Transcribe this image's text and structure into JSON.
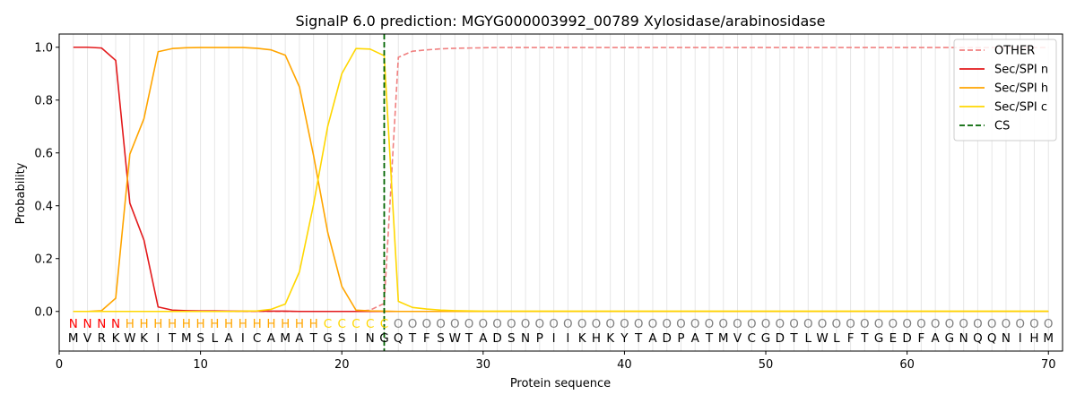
{
  "chart_data": {
    "type": "line",
    "title": "SignalP 6.0 prediction: MGYG000003992_00789 Xylosidase/arabinosidase",
    "xlabel": "Protein sequence",
    "ylabel": "Probability",
    "xlim": [
      0,
      71
    ],
    "ylim": [
      -0.15,
      1.05
    ],
    "xticks": [
      0,
      10,
      20,
      30,
      40,
      50,
      60,
      70
    ],
    "yticks": [
      0.0,
      0.2,
      0.4,
      0.6,
      0.8,
      1.0
    ],
    "xtick_labels": [
      "0",
      "10",
      "20",
      "30",
      "40",
      "50",
      "60",
      "70"
    ],
    "ytick_labels": [
      "0.0",
      "0.2",
      "0.4",
      "0.6",
      "0.8",
      "1.0"
    ],
    "legend_position": "top-right",
    "cleavage_site": 23,
    "sequence": [
      "M",
      "V",
      "R",
      "K",
      "W",
      "K",
      "I",
      "T",
      "M",
      "S",
      "L",
      "A",
      "I",
      "C",
      "A",
      "M",
      "A",
      "T",
      "G",
      "S",
      "I",
      "N",
      "G",
      "Q",
      "T",
      "F",
      "S",
      "W",
      "T",
      "A",
      "D",
      "S",
      "N",
      "P",
      "I",
      "I",
      "K",
      "H",
      "K",
      "Y",
      "T",
      "A",
      "D",
      "P",
      "A",
      "T",
      "M",
      "V",
      "C",
      "G",
      "D",
      "T",
      "L",
      "W",
      "L",
      "F",
      "T",
      "G",
      "E",
      "D",
      "F",
      "A",
      "G",
      "N",
      "Q",
      "Q",
      "N",
      "I",
      "H",
      "M"
    ],
    "region_labels": [
      "N",
      "N",
      "N",
      "N",
      "H",
      "H",
      "H",
      "H",
      "H",
      "H",
      "H",
      "H",
      "H",
      "H",
      "H",
      "H",
      "H",
      "H",
      "C",
      "C",
      "C",
      "C",
      "C",
      "O",
      "O",
      "O",
      "O",
      "O",
      "O",
      "O",
      "O",
      "O",
      "O",
      "O",
      "O",
      "O",
      "O",
      "O",
      "O",
      "O",
      "O",
      "O",
      "O",
      "O",
      "O",
      "O",
      "O",
      "O",
      "O",
      "O",
      "O",
      "O",
      "O",
      "O",
      "O",
      "O",
      "O",
      "O",
      "O",
      "O",
      "O",
      "O",
      "O",
      "O",
      "O",
      "O",
      "O",
      "O",
      "O",
      "O"
    ],
    "region_colors": {
      "N": "#ff0000",
      "H": "#ffa500",
      "C": "#ffd700",
      "O": "#808080"
    },
    "series": [
      {
        "name": "OTHER",
        "color": "#f08080",
        "style": "dashed",
        "x_start": 1,
        "values": [
          0.0,
          0.0,
          0.0,
          0.0,
          0.0,
          0.0,
          0.0,
          0.0,
          0.0,
          0.0,
          0.0,
          0.0,
          0.0,
          0.0,
          0.0,
          0.0,
          0.0,
          0.0,
          0.0,
          0.0,
          0.0,
          0.005,
          0.03,
          0.962,
          0.985,
          0.99,
          0.994,
          0.996,
          0.997,
          0.998,
          0.999,
          0.999,
          0.999,
          0.999,
          0.999,
          0.999,
          0.999,
          0.999,
          0.999,
          0.999,
          0.999,
          0.999,
          0.999,
          0.999,
          0.999,
          0.999,
          0.999,
          0.999,
          0.999,
          0.999,
          0.999,
          0.999,
          0.999,
          0.999,
          0.999,
          0.999,
          0.999,
          0.999,
          0.999,
          0.999,
          0.999,
          0.999,
          0.999,
          0.999,
          0.999,
          0.999,
          0.999,
          0.999,
          0.999,
          0.999
        ]
      },
      {
        "name": "Sec/SPI n",
        "color": "#e31a1c",
        "style": "solid",
        "x_start": 1,
        "values": [
          1.0,
          1.0,
          0.997,
          0.95,
          0.41,
          0.27,
          0.017,
          0.005,
          0.003,
          0.002,
          0.002,
          0.001,
          0.001,
          0.001,
          0.001,
          0.001,
          0.0,
          0.0,
          0.0,
          0.0,
          0.0,
          0.0,
          0.0,
          0.0,
          0.0,
          0.0,
          0.0,
          0.0,
          0.0,
          0.0,
          0.0,
          0.0,
          0.0,
          0.0,
          0.0,
          0.0,
          0.0,
          0.0,
          0.0,
          0.0,
          0.0,
          0.0,
          0.0,
          0.0,
          0.0,
          0.0,
          0.0,
          0.0,
          0.0,
          0.0,
          0.0,
          0.0,
          0.0,
          0.0,
          0.0,
          0.0,
          0.0,
          0.0,
          0.0,
          0.0,
          0.0,
          0.0,
          0.0,
          0.0,
          0.0,
          0.0,
          0.0,
          0.0,
          0.0,
          0.0
        ]
      },
      {
        "name": "Sec/SPI h",
        "color": "#ffa500",
        "style": "solid",
        "x_start": 1,
        "values": [
          0.0,
          0.0,
          0.003,
          0.05,
          0.595,
          0.73,
          0.983,
          0.995,
          0.998,
          0.999,
          0.999,
          0.999,
          0.999,
          0.996,
          0.99,
          0.97,
          0.85,
          0.59,
          0.3,
          0.095,
          0.005,
          0.002,
          0.001,
          0.0,
          0.0,
          0.0,
          0.0,
          0.0,
          0.0,
          0.0,
          0.0,
          0.0,
          0.0,
          0.0,
          0.0,
          0.0,
          0.0,
          0.0,
          0.0,
          0.0,
          0.0,
          0.0,
          0.0,
          0.0,
          0.0,
          0.0,
          0.0,
          0.0,
          0.0,
          0.0,
          0.0,
          0.0,
          0.0,
          0.0,
          0.0,
          0.0,
          0.0,
          0.0,
          0.0,
          0.0,
          0.0,
          0.0,
          0.0,
          0.0,
          0.0,
          0.0,
          0.0,
          0.0,
          0.0,
          0.0
        ]
      },
      {
        "name": "Sec/SPI c",
        "color": "#ffd700",
        "style": "solid",
        "x_start": 1,
        "values": [
          0.0,
          0.0,
          0.0,
          0.0,
          0.0,
          0.0,
          0.0,
          0.0,
          0.0,
          0.0,
          0.0,
          0.0,
          0.001,
          0.002,
          0.008,
          0.028,
          0.15,
          0.405,
          0.7,
          0.9,
          0.995,
          0.993,
          0.968,
          0.038,
          0.015,
          0.009,
          0.005,
          0.003,
          0.002,
          0.001,
          0.001,
          0.001,
          0.001,
          0.001,
          0.001,
          0.001,
          0.001,
          0.001,
          0.001,
          0.001,
          0.001,
          0.001,
          0.001,
          0.001,
          0.001,
          0.001,
          0.001,
          0.001,
          0.001,
          0.001,
          0.001,
          0.001,
          0.001,
          0.001,
          0.001,
          0.001,
          0.001,
          0.001,
          0.001,
          0.001,
          0.001,
          0.001,
          0.001,
          0.001,
          0.001,
          0.001,
          0.001,
          0.001,
          0.001,
          0.001
        ]
      }
    ],
    "legend": [
      {
        "label": "OTHER",
        "color": "#f08080",
        "style": "dashed"
      },
      {
        "label": "Sec/SPI n",
        "color": "#e31a1c",
        "style": "solid"
      },
      {
        "label": "Sec/SPI h",
        "color": "#ffa500",
        "style": "solid"
      },
      {
        "label": "Sec/SPI c",
        "color": "#ffd700",
        "style": "solid"
      },
      {
        "label": "CS",
        "color": "#006400",
        "style": "dashed"
      }
    ]
  }
}
